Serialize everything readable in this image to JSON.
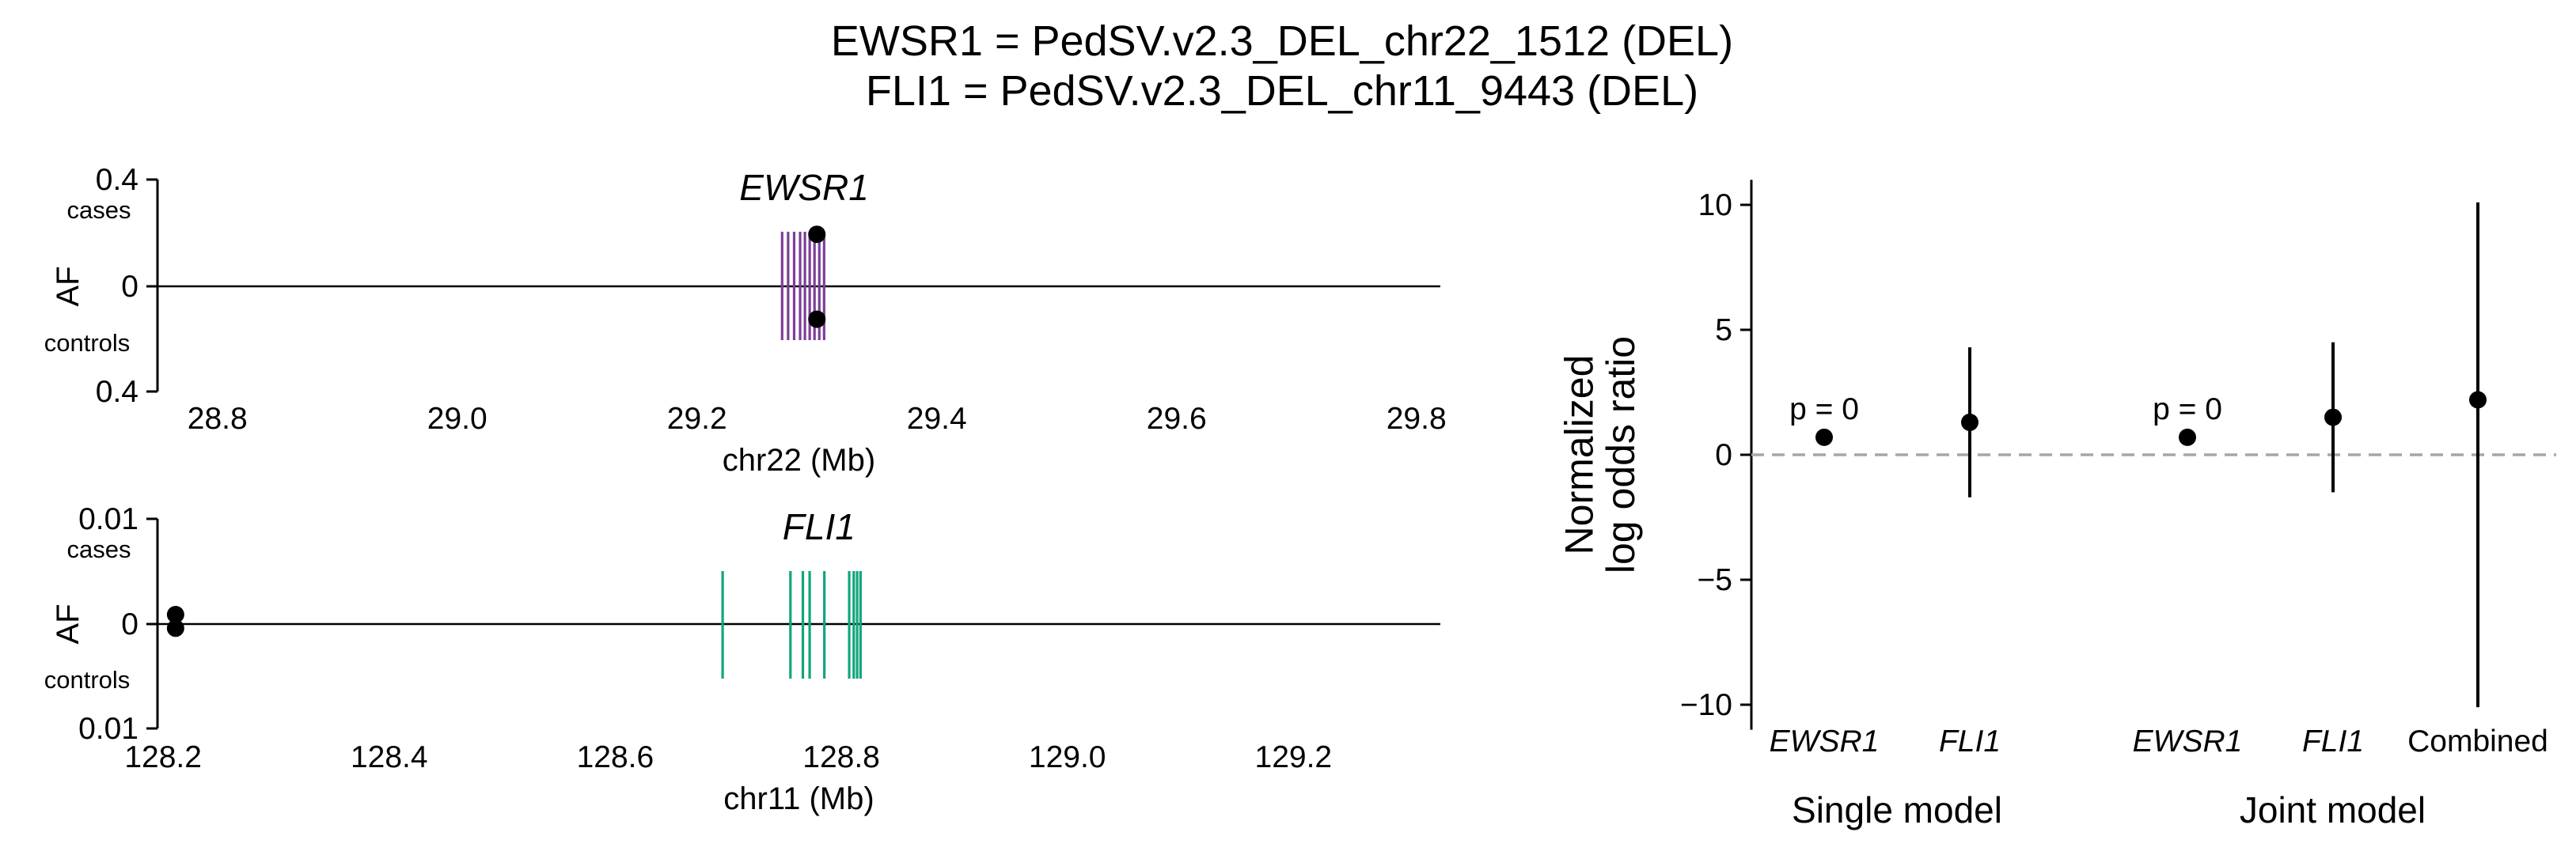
{
  "title_lines": [
    "EWSR1 = PedSV.v2.3_DEL_chr22_1512 (DEL)",
    "FLI1 = PedSV.v2.3_DEL_chr11_9443 (DEL)"
  ],
  "colors": {
    "EWSR1": "#7b3f98",
    "FLI1": "#12a57c",
    "points": "#000000",
    "zero_line": "#a6a6a6"
  },
  "chart_data": [
    {
      "type": "scatter",
      "panel": "EWSR1 locus",
      "gene": "EWSR1",
      "xlabel": "chr22 (Mb)",
      "ylabel": "AF",
      "top_label": "cases",
      "bottom_label": "controls",
      "ytick_labels": [
        "0.4",
        "0",
        "0.4"
      ],
      "xlim": [
        28.75,
        29.82
      ],
      "xticks": [
        "28.8",
        "29.0",
        "29.2",
        "29.4",
        "29.6",
        "29.8"
      ],
      "ylim": [
        -0.4,
        0.4
      ],
      "exons_mb": [
        29.271,
        29.276,
        29.281,
        29.286,
        29.29,
        29.294,
        29.298,
        29.302,
        29.306
      ],
      "points": [
        {
          "x": 29.3,
          "y": 0.195,
          "group": "cases"
        },
        {
          "x": 29.3,
          "y": -0.125,
          "group": "controls"
        }
      ]
    },
    {
      "type": "scatter",
      "panel": "FLI1 locus",
      "gene": "FLI1",
      "xlabel": "chr11 (Mb)",
      "ylabel": "AF",
      "top_label": "cases",
      "bottom_label": "controls",
      "ytick_labels": [
        "0.01",
        "0",
        "0.01"
      ],
      "xlim": [
        128.195,
        129.33
      ],
      "xticks": [
        "128.2",
        "128.4",
        "128.6",
        "128.8",
        "129.0",
        "129.2"
      ],
      "ylim": [
        -0.01,
        0.01
      ],
      "exons_mb": [
        128.695,
        128.755,
        128.766,
        128.772,
        128.785,
        128.807,
        128.811,
        128.814,
        128.817
      ],
      "points": [
        {
          "x": 128.211,
          "y": 0.0009,
          "group": "cases"
        },
        {
          "x": 128.211,
          "y": -0.0004,
          "group": "controls"
        }
      ]
    },
    {
      "type": "scatter",
      "panel": "Odds ratio estimates",
      "ylabel_lines": [
        "Normalized",
        "log odds ratio"
      ],
      "ylim": [
        -11,
        11
      ],
      "yticks": [
        -10,
        -5,
        0,
        5,
        10
      ],
      "ytick_labels": [
        "−10",
        "−5",
        "0",
        "5",
        "10"
      ],
      "groups": [
        "Single model",
        "Joint model"
      ],
      "points": [
        {
          "label": "EWSR1",
          "group": "Single model",
          "estimate": 0.7,
          "ci": null,
          "annotation": "p = 0"
        },
        {
          "label": "FLI1",
          "group": "Single model",
          "estimate": 1.3,
          "ci": [
            -1.7,
            4.3
          ],
          "annotation": ""
        },
        {
          "label": "EWSR1",
          "group": "Joint model",
          "estimate": 0.7,
          "ci": null,
          "annotation": "p = 0"
        },
        {
          "label": "FLI1",
          "group": "Joint model",
          "estimate": 1.5,
          "ci": [
            -1.5,
            4.5
          ],
          "annotation": ""
        },
        {
          "label": "Combined",
          "group": "Joint model",
          "estimate": 2.2,
          "ci": [
            -10.1,
            10.1
          ],
          "annotation": ""
        }
      ]
    }
  ]
}
